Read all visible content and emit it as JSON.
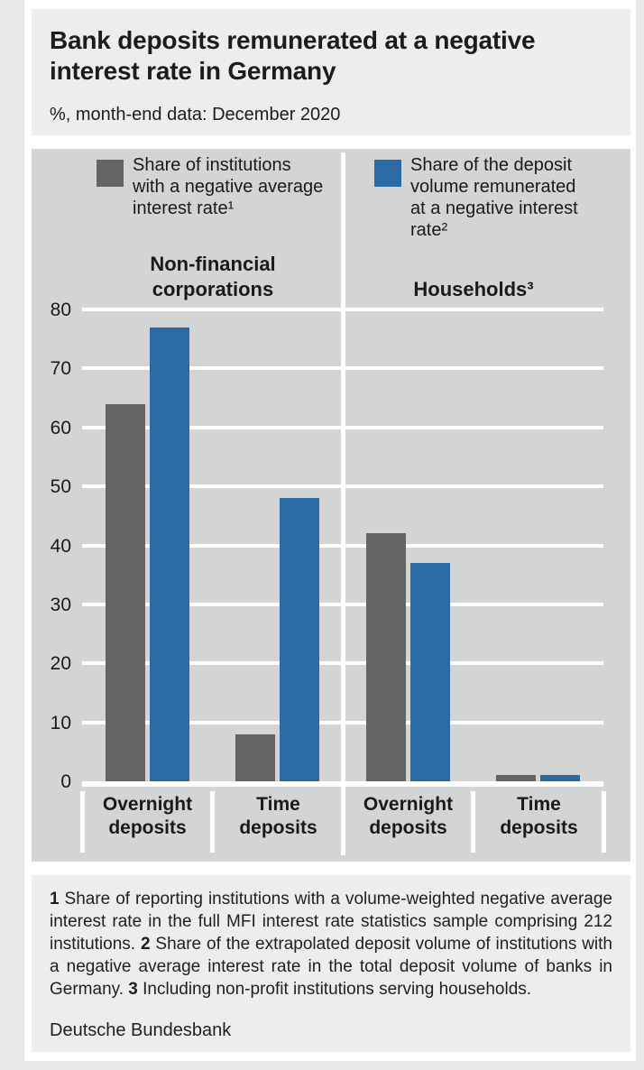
{
  "page": {
    "title": "Bank deposits remunerated at a negative interest rate in Germany",
    "subtitle": "%, month-end data: December 2020",
    "source": "Deutsche Bundesbank"
  },
  "legend": [
    {
      "label": "Share of institutions with a negative average interest rate¹",
      "lines": [
        "Share of institutions",
        "with a negative average",
        "interest rate¹"
      ],
      "color": "#636466"
    },
    {
      "label": "Share of the deposit volume remunerated at a negative interest rate²",
      "lines": [
        "Share of the deposit",
        "volume remunerated",
        "at a negative interest",
        "rate²"
      ],
      "color": "#2b6ba4"
    }
  ],
  "footnotes": [
    {
      "marker": "1",
      "text": "Share of reporting institutions with a volume-weighted negative average interest rate in the full MFI interest rate statistics sample comprising 212 institutions."
    },
    {
      "marker": "2",
      "text": "Share of the extrapolated deposit volume of institutions with a negative average interest rate in the total deposit volume of banks in Germany."
    },
    {
      "marker": "3",
      "text": "Including non-profit institutions serving households."
    }
  ],
  "chart_data": {
    "type": "bar",
    "title": "Bank deposits remunerated at a negative interest rate in Germany",
    "subtitle": "%, month-end data: December 2020",
    "unit": "%",
    "ylim": [
      0,
      80
    ],
    "ytick_step": 10,
    "grid": true,
    "legend_position": "top",
    "groups": [
      {
        "label": "Non-financial corporations",
        "label_lines": [
          "Non-financial",
          "corporations"
        ],
        "categories": [
          "Overnight deposits",
          "Time deposits"
        ]
      },
      {
        "label": "Households³",
        "label_lines": [
          "Households³"
        ],
        "categories": [
          "Overnight deposits",
          "Time deposits"
        ]
      }
    ],
    "categories": [
      "Overnight deposits",
      "Time deposits",
      "Overnight deposits",
      "Time deposits"
    ],
    "series": [
      {
        "name": "Share of institutions with a negative average interest rate¹",
        "color": "#636466",
        "values": [
          64,
          8,
          42,
          1
        ]
      },
      {
        "name": "Share of the deposit volume remunerated at a negative interest rate²",
        "color": "#2b6ba4",
        "values": [
          77,
          48,
          37,
          1
        ]
      }
    ]
  }
}
